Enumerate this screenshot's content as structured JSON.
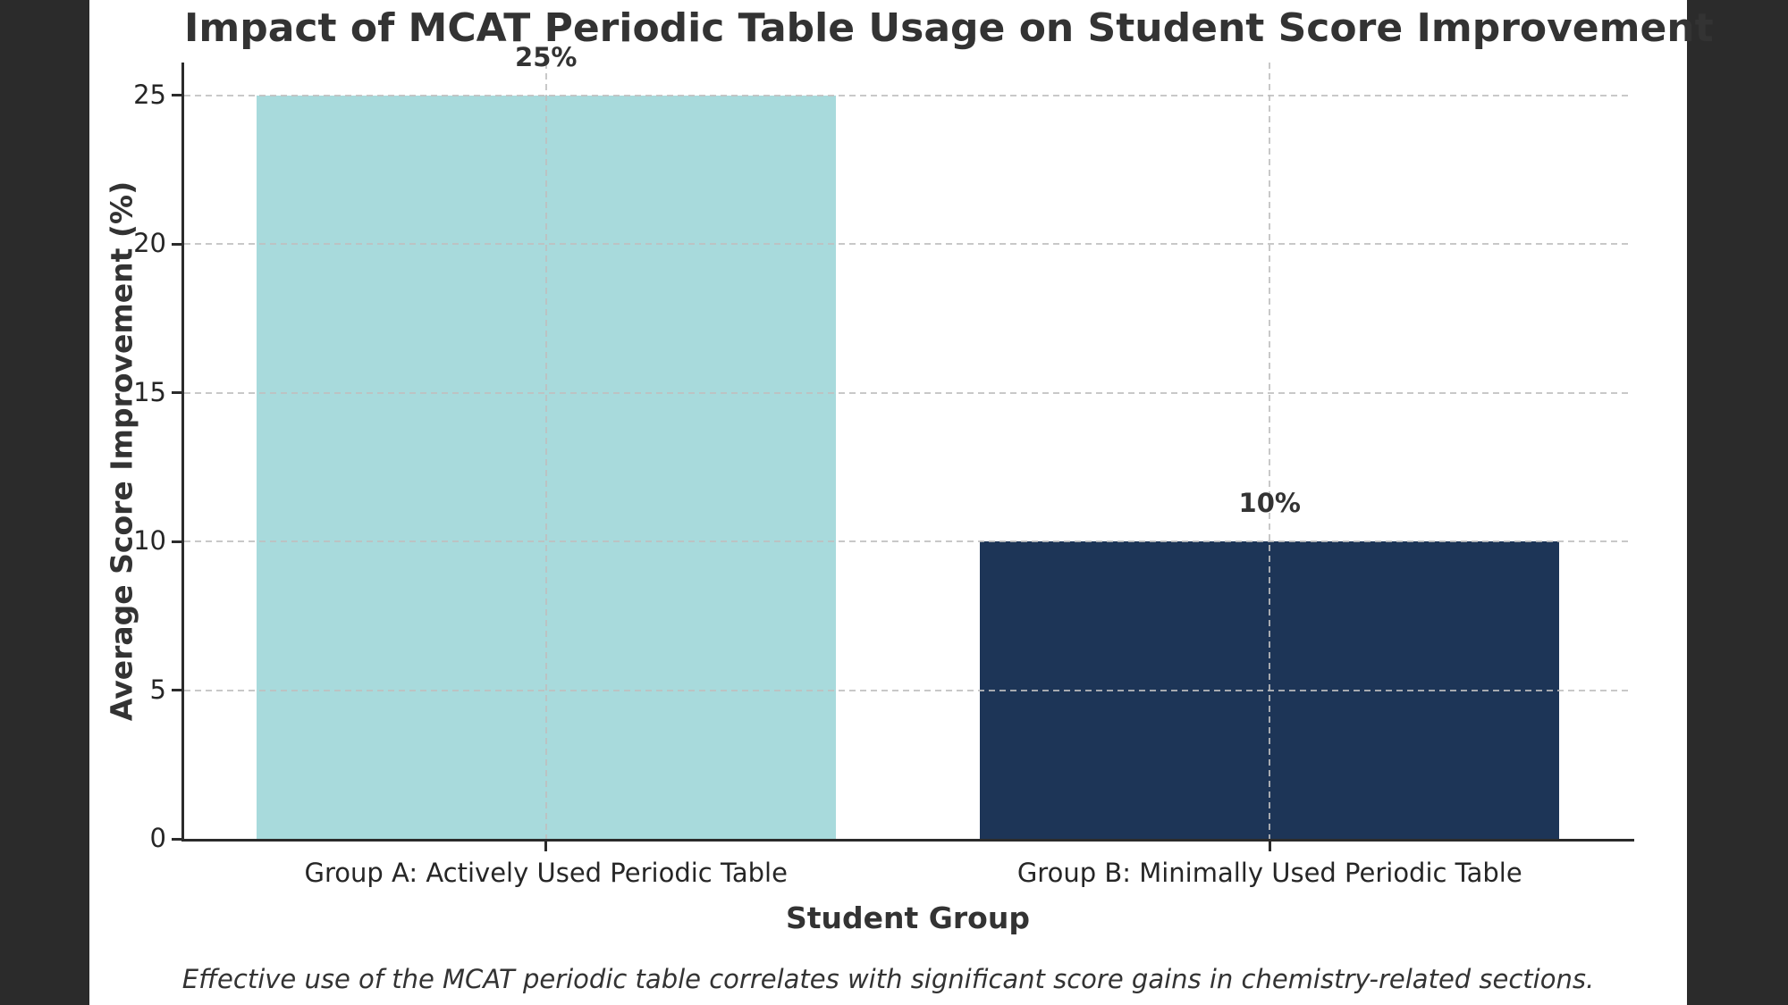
{
  "letterbox_color": "#2b2b2b",
  "chart_data": {
    "type": "bar",
    "title": "Impact of MCAT Periodic Table Usage on Student Score Improvement",
    "categories": [
      "Group A: Actively Used Periodic Table",
      "Group B: Minimally Used Periodic Table"
    ],
    "values": [
      25,
      10
    ],
    "value_labels": [
      "25%",
      "10%"
    ],
    "bar_colors": [
      "#a8dadc",
      "#1d3557"
    ],
    "xlabel": "Student Group",
    "ylabel": "Average Score Improvement (%)",
    "yticks": [
      0,
      5,
      10,
      15,
      20,
      25
    ],
    "ylim": [
      0,
      26.1
    ],
    "bar_width_fraction": 0.8,
    "grid": "dashed, drawn over bars",
    "legend": "none",
    "caption": "Effective use of the MCAT periodic table correlates with significant score gains in chemistry-related sections.",
    "text_color": "#333333",
    "grid_color": "#bfbfbf",
    "spine_color": "#2b2b2b"
  }
}
